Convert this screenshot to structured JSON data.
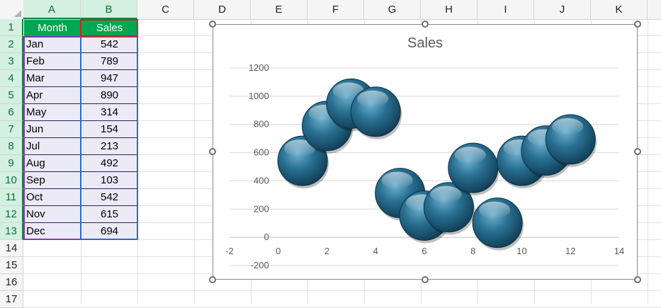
{
  "sheet": {
    "columns": [
      "A",
      "B",
      "C",
      "D",
      "E",
      "F",
      "G",
      "H",
      "I",
      "J",
      "K"
    ],
    "rows": [
      "1",
      "2",
      "3",
      "4",
      "5",
      "6",
      "7",
      "8",
      "9",
      "10",
      "11",
      "12",
      "13",
      "14",
      "15",
      "16",
      "17"
    ],
    "headers": {
      "month": "Month",
      "sales": "Sales"
    },
    "data": [
      {
        "month": "Jan",
        "sales": "542"
      },
      {
        "month": "Feb",
        "sales": "789"
      },
      {
        "month": "Mar",
        "sales": "947"
      },
      {
        "month": "Apr",
        "sales": "890"
      },
      {
        "month": "May",
        "sales": "314"
      },
      {
        "month": "Jun",
        "sales": "154"
      },
      {
        "month": "Jul",
        "sales": "213"
      },
      {
        "month": "Aug",
        "sales": "492"
      },
      {
        "month": "Sep",
        "sales": "103"
      },
      {
        "month": "Oct",
        "sales": "542"
      },
      {
        "month": "Nov",
        "sales": "615"
      },
      {
        "month": "Dec",
        "sales": "694"
      }
    ],
    "colors": {
      "header_fill": "#00a651",
      "data_fill": "#eceaf7",
      "select_green": "#137e43"
    }
  },
  "chart_data": {
    "type": "scatter",
    "title": "Sales",
    "x": [
      1,
      2,
      3,
      4,
      5,
      6,
      7,
      8,
      9,
      10,
      11,
      12
    ],
    "values": [
      542,
      789,
      947,
      890,
      314,
      154,
      213,
      492,
      103,
      542,
      615,
      694
    ],
    "xlim": [
      -2,
      14
    ],
    "ylim": [
      -200,
      1200
    ],
    "xticks": [
      -2,
      0,
      2,
      4,
      6,
      8,
      10,
      12,
      14
    ],
    "yticks": [
      -200,
      0,
      200,
      400,
      600,
      800,
      1000,
      1200
    ],
    "grid": true,
    "marker": "bubble",
    "color": "#1f5f7d"
  }
}
